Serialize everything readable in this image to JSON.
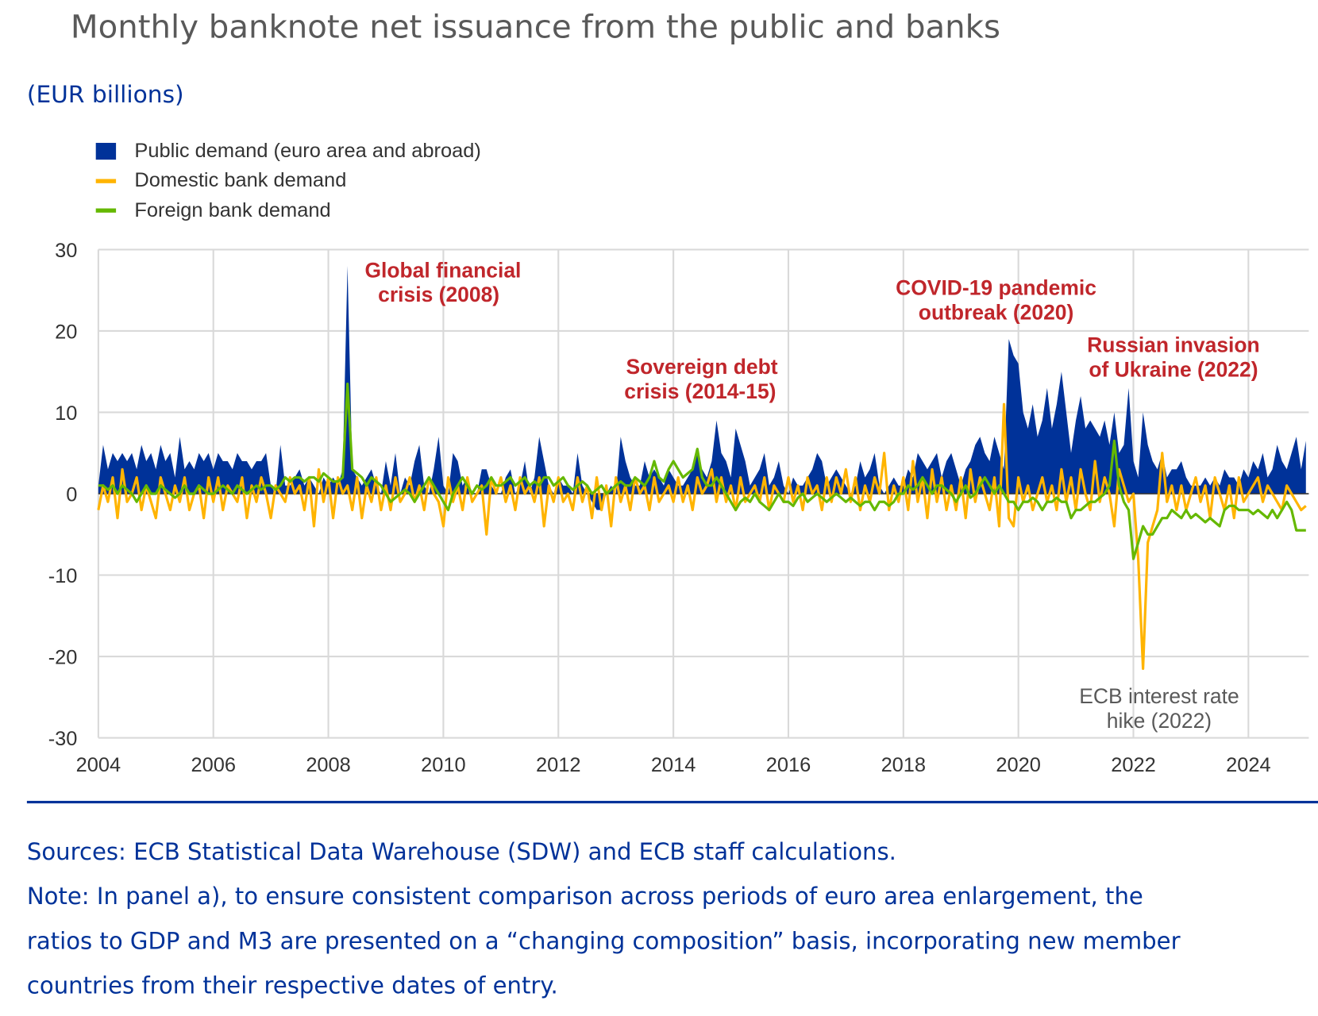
{
  "title": "Monthly banknote net issuance from the public and banks",
  "subtitle": "(EUR billions)",
  "colors": {
    "public": "#003299",
    "domestic": "#ffb400",
    "foreign": "#65b800",
    "annotation": "#c0262b",
    "annotation_grey": "#595959",
    "text_blue": "#003299"
  },
  "chart_data": {
    "type": "area",
    "title": "Monthly banknote net issuance from the public and banks",
    "ylabel": "EUR billions",
    "ylim": [
      -30,
      30
    ],
    "yticks": [
      "30",
      "20",
      "10",
      "0",
      "-10",
      "-20",
      "-30"
    ],
    "ytick_values": [
      30,
      20,
      10,
      0,
      -10,
      -20,
      -30
    ],
    "xlim": [
      2004,
      2025.05
    ],
    "xticks": [
      "2004",
      "2006",
      "2008",
      "2010",
      "2012",
      "2014",
      "2016",
      "2018",
      "2020",
      "2022",
      "2024"
    ],
    "xtick_values": [
      2004,
      2006,
      2008,
      2010,
      2012,
      2014,
      2016,
      2018,
      2020,
      2022,
      2024
    ],
    "x_start": "2004-01",
    "frequency": "monthly",
    "grid": true,
    "legend_position": "top-left",
    "legend": [
      "Public demand (euro area and abroad)",
      "Domestic bank demand",
      "Foreign bank demand"
    ],
    "series": [
      {
        "name": "Public demand (euro area and abroad)",
        "type": "area",
        "values": [
          1,
          6,
          3,
          5,
          4,
          5,
          4,
          5,
          3,
          6,
          4,
          5,
          3,
          6,
          4,
          5,
          2,
          7,
          3,
          4,
          3,
          5,
          4,
          5,
          3,
          5,
          4,
          4,
          3,
          5,
          4,
          4,
          3,
          4,
          4,
          5,
          1,
          0,
          6,
          1,
          1,
          2,
          3,
          1,
          2,
          1,
          0,
          2,
          1,
          2,
          1,
          3,
          28,
          3,
          2,
          1,
          2,
          3,
          1,
          0,
          4,
          1,
          5,
          0,
          2,
          1,
          4,
          6,
          1,
          0,
          3,
          7,
          1,
          0,
          5,
          4,
          1,
          2,
          0,
          0,
          3,
          3,
          1,
          0,
          0,
          2,
          3,
          0,
          1,
          4,
          0,
          2,
          7,
          4,
          1,
          0,
          2,
          1,
          1,
          0,
          5,
          1,
          0,
          -1,
          -2,
          -2,
          0,
          1,
          0,
          7,
          4,
          2,
          1,
          1,
          4,
          2,
          3,
          2,
          1,
          3,
          2,
          1,
          1,
          2,
          3,
          5,
          3,
          2,
          4,
          9,
          5,
          4,
          2,
          8,
          6,
          4,
          1,
          2,
          3,
          5,
          1,
          2,
          4,
          1,
          0,
          2,
          1,
          1,
          2,
          3,
          5,
          4,
          1,
          2,
          3,
          2,
          1,
          0,
          1,
          4,
          2,
          3,
          5,
          1,
          0,
          1,
          2,
          1,
          1,
          3,
          2,
          5,
          4,
          3,
          4,
          5,
          2,
          4,
          5,
          3,
          1,
          3,
          4,
          6,
          7,
          5,
          4,
          7,
          5,
          3,
          19,
          17,
          16,
          10,
          8,
          11,
          7,
          9,
          13,
          8,
          11,
          15,
          10,
          5,
          9,
          12,
          8,
          9,
          8,
          7,
          9,
          6,
          10,
          5,
          6,
          13,
          4,
          2,
          10,
          6,
          4,
          3,
          5,
          2,
          3,
          3,
          4,
          2,
          1,
          1,
          1,
          2,
          1,
          2,
          1,
          3,
          2,
          2,
          1,
          3,
          2,
          4,
          3,
          5,
          2,
          3,
          6,
          4,
          3,
          5,
          7,
          3,
          6.5
        ]
      },
      {
        "name": "Domestic bank demand",
        "type": "line",
        "values": [
          -2,
          1,
          -1,
          2,
          -3,
          3,
          -1,
          0,
          2,
          -2,
          1,
          -1,
          -3,
          2,
          0,
          -2,
          1,
          -1,
          2,
          -2,
          0,
          1,
          -3,
          2,
          -1,
          2,
          -2,
          1,
          0,
          -1,
          2,
          -3,
          1,
          -1,
          2,
          0,
          -3,
          1,
          0,
          -1,
          2,
          0,
          1,
          -2,
          2,
          -4,
          3,
          -1,
          2,
          -3,
          2,
          0,
          1,
          -2,
          2,
          -3,
          1,
          -1,
          2,
          -2,
          1,
          -2,
          2,
          -1,
          0,
          2,
          -1,
          1,
          -2,
          2,
          0,
          -1,
          -4,
          2,
          -1,
          1,
          -2,
          2,
          -1,
          0,
          1,
          -5,
          2,
          0,
          2,
          -1,
          1,
          -2,
          2,
          0,
          1,
          -1,
          2,
          -4,
          1,
          -1,
          2,
          -1,
          0,
          -2,
          2,
          -1,
          1,
          -3,
          2,
          -2,
          1,
          -4,
          2,
          -1,
          1,
          -2,
          2,
          0,
          1,
          -2,
          2,
          -1,
          0,
          1,
          -1,
          2,
          -1,
          1,
          -2,
          2,
          0,
          1,
          3,
          -1,
          2,
          -1,
          1,
          -2,
          2,
          -1,
          0,
          1,
          -1,
          2,
          -2,
          1,
          0,
          -1,
          2,
          -1,
          1,
          -2,
          2,
          0,
          1,
          -2,
          2,
          -1,
          2,
          0,
          3,
          -1,
          2,
          -2,
          1,
          -1,
          2,
          0,
          5,
          -2,
          1,
          -1,
          2,
          -2,
          4,
          -1,
          2,
          -3,
          3,
          -1,
          2,
          -2,
          1,
          -2,
          2,
          -3,
          3,
          -1,
          2,
          0,
          -2,
          2,
          -4,
          11,
          -3,
          -4,
          2,
          -1,
          1,
          -2,
          0,
          2,
          -1,
          1,
          -2,
          3,
          -1,
          2,
          -2,
          3,
          0,
          -2,
          4,
          -1,
          2,
          0,
          -4,
          3,
          1,
          -1,
          0,
          -8,
          -21.5,
          -6,
          -4,
          -2,
          5,
          -1,
          1,
          -2,
          1,
          -2,
          0,
          2,
          -1,
          1,
          -3,
          2,
          0,
          -2,
          1,
          -3,
          2,
          -1,
          0,
          1,
          2,
          -1,
          1,
          0,
          -1,
          -2,
          1,
          0,
          -1,
          -2,
          -1.5
        ]
      },
      {
        "name": "Foreign bank demand",
        "type": "line",
        "values": [
          1,
          1,
          0.5,
          1,
          0,
          1,
          0.5,
          0,
          -1,
          0,
          1,
          0,
          0,
          1,
          0.5,
          0,
          -0.5,
          0,
          1,
          0,
          0,
          1,
          0.5,
          0,
          0,
          0.5,
          1,
          0.5,
          0,
          1,
          0.5,
          0,
          0.5,
          1,
          0.5,
          1,
          1,
          0.5,
          1,
          2,
          1.5,
          2,
          2,
          1.5,
          2,
          2,
          1.5,
          2.5,
          2,
          1.5,
          1.5,
          2,
          13.5,
          3,
          2.5,
          2,
          1,
          2,
          1.5,
          1,
          0,
          -1,
          -0.5,
          0,
          0.5,
          0,
          -1,
          0,
          1,
          2,
          1,
          0,
          -1,
          -2,
          0,
          1,
          2,
          1,
          0,
          1,
          0.5,
          1,
          2,
          1,
          1,
          1.5,
          2,
          1,
          1.5,
          2,
          1,
          1.5,
          1,
          2,
          2,
          1,
          1.5,
          2,
          1,
          0.5,
          1,
          1.5,
          1,
          0,
          0.5,
          1,
          0,
          0.5,
          1,
          1.5,
          1,
          1,
          2,
          1.5,
          1,
          2,
          4,
          2,
          1.5,
          3,
          4,
          3,
          2,
          2.5,
          3,
          5.5,
          2,
          1,
          1,
          2,
          1,
          0,
          -1,
          -2,
          -1,
          -0.5,
          -1,
          0,
          -1,
          -1.5,
          -2,
          -1,
          0,
          -1,
          -1,
          -1.5,
          -0.5,
          0,
          -1,
          -0.5,
          0,
          -0.5,
          -1,
          -0.5,
          0,
          -0.5,
          -1,
          -0.5,
          -1,
          -1.5,
          -1,
          -1,
          -2,
          -1,
          -1,
          -1.5,
          -1,
          0,
          0,
          1,
          0.5,
          1,
          2,
          1,
          0,
          1,
          1,
          0.5,
          0,
          -1,
          0,
          1,
          -0.5,
          0,
          1,
          2,
          1,
          0,
          1,
          0,
          -1,
          -1,
          -2,
          -1,
          -1,
          -0.5,
          -1,
          -2,
          -1,
          -1,
          -0.5,
          -1,
          -1,
          -3,
          -2,
          -2,
          -1.5,
          -1,
          -1,
          -0.5,
          0,
          1,
          6.5,
          1,
          -1,
          -2,
          -8,
          -6,
          -4,
          -5,
          -5,
          -4,
          -3,
          -3,
          -2,
          -2.5,
          -3,
          -2,
          -3,
          -2.5,
          -3,
          -3.5,
          -3,
          -3.5,
          -4,
          -2,
          -1.5,
          -1.5,
          -2,
          -2,
          -2,
          -2.5,
          -2,
          -2.5,
          -3,
          -2,
          -3,
          -2,
          -1,
          -2,
          -4.5,
          -4.5,
          -4.5
        ]
      }
    ],
    "annotations": [
      {
        "lines": [
          "Global financial",
          "crisis (2008)"
        ],
        "style": "red"
      },
      {
        "lines": [
          "Sovereign debt",
          "crisis (2014-15)"
        ],
        "style": "red"
      },
      {
        "lines": [
          "COVID-19 pandemic",
          "outbreak (2020)"
        ],
        "style": "red"
      },
      {
        "lines": [
          "Russian invasion",
          "of Ukraine (2022)"
        ],
        "style": "red"
      },
      {
        "lines": [
          "ECB interest rate",
          "hike (2022)"
        ],
        "style": "grey"
      }
    ]
  },
  "notes": {
    "sources": "Sources: ECB Statistical Data Warehouse (SDW) and ECB staff calculations.",
    "note_lines": [
      "Note: In panel a), to ensure consistent comparison across periods of euro area enlargement, the",
      "ratios to GDP and M3 are presented on a “changing composition” basis, incorporating new member",
      "countries from their respective dates of entry."
    ]
  }
}
